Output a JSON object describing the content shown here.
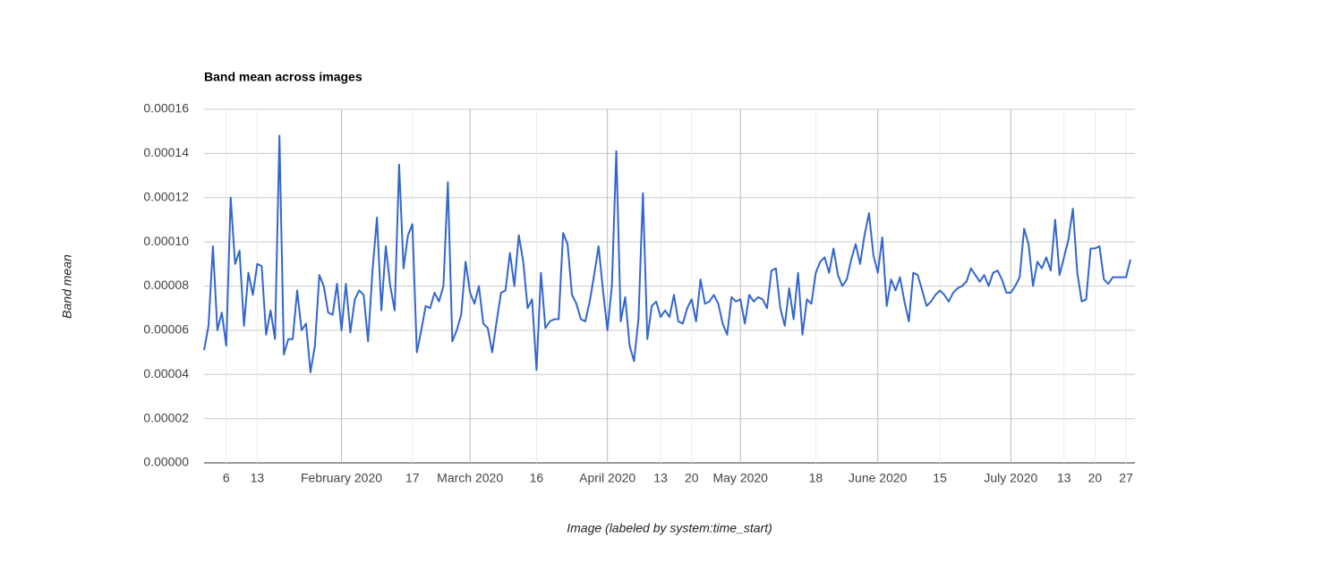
{
  "chart_data": {
    "type": "line",
    "title": "Band mean across images",
    "x_label": "Image (labeled by system:time_start)",
    "y_label": "Band mean",
    "color": "#3366cc",
    "grid": true,
    "xlim": [
      "2020-01-01",
      "2020-07-29"
    ],
    "ylim": [
      0,
      0.00016
    ],
    "yticks": [
      {
        "value": 0,
        "label": "0.00000"
      },
      2e-05,
      4e-05,
      6e-05,
      8e-05,
      {
        "value": 0.0001,
        "label": "0.00010"
      },
      0.00012,
      0.00014,
      0.00016
    ],
    "xticks": [
      {
        "value": "2020-01-06",
        "label": "6"
      },
      {
        "value": "2020-01-13",
        "label": "13"
      },
      {
        "value": "2020-02-01",
        "label": "February 2020"
      },
      {
        "value": "2020-02-17",
        "label": "17"
      },
      {
        "value": "2020-03-01",
        "label": "March 2020"
      },
      {
        "value": "2020-03-16",
        "label": "16"
      },
      {
        "value": "2020-04-01",
        "label": "April 2020"
      },
      {
        "value": "2020-04-13",
        "label": "13"
      },
      {
        "value": "2020-04-20",
        "label": "20"
      },
      {
        "value": "2020-05-01",
        "label": "May 2020"
      },
      {
        "value": "2020-05-18",
        "label": "18"
      },
      {
        "value": "2020-06-01",
        "label": "June 2020"
      },
      {
        "value": "2020-06-15",
        "label": "15"
      },
      {
        "value": "2020-07-01",
        "label": "July 2020"
      },
      {
        "value": "2020-07-13",
        "label": "13"
      },
      {
        "value": "2020-07-20",
        "label": "20"
      },
      {
        "value": "2020-07-27",
        "label": "27"
      }
    ],
    "x": [
      "2020-01-01",
      "2020-01-02",
      "2020-01-03",
      "2020-01-04",
      "2020-01-05",
      "2020-01-06",
      "2020-01-07",
      "2020-01-08",
      "2020-01-09",
      "2020-01-10",
      "2020-01-11",
      "2020-01-12",
      "2020-01-13",
      "2020-01-14",
      "2020-01-15",
      "2020-01-16",
      "2020-01-17",
      "2020-01-18",
      "2020-01-19",
      "2020-01-20",
      "2020-01-21",
      "2020-01-22",
      "2020-01-23",
      "2020-01-24",
      "2020-01-25",
      "2020-01-26",
      "2020-01-27",
      "2020-01-28",
      "2020-01-29",
      "2020-01-30",
      "2020-01-31",
      "2020-02-01",
      "2020-02-02",
      "2020-02-03",
      "2020-02-04",
      "2020-02-05",
      "2020-02-06",
      "2020-02-07",
      "2020-02-08",
      "2020-02-09",
      "2020-02-10",
      "2020-02-11",
      "2020-02-12",
      "2020-02-13",
      "2020-02-14",
      "2020-02-15",
      "2020-02-16",
      "2020-02-17",
      "2020-02-18",
      "2020-02-19",
      "2020-02-20",
      "2020-02-21",
      "2020-02-22",
      "2020-02-23",
      "2020-02-24",
      "2020-02-25",
      "2020-02-26",
      "2020-02-27",
      "2020-02-28",
      "2020-02-29",
      "2020-03-01",
      "2020-03-02",
      "2020-03-03",
      "2020-03-04",
      "2020-03-05",
      "2020-03-06",
      "2020-03-07",
      "2020-03-08",
      "2020-03-09",
      "2020-03-10",
      "2020-03-11",
      "2020-03-12",
      "2020-03-13",
      "2020-03-14",
      "2020-03-15",
      "2020-03-16",
      "2020-03-17",
      "2020-03-18",
      "2020-03-19",
      "2020-03-20",
      "2020-03-21",
      "2020-03-22",
      "2020-03-23",
      "2020-03-24",
      "2020-03-25",
      "2020-03-26",
      "2020-03-27",
      "2020-03-28",
      "2020-03-29",
      "2020-03-30",
      "2020-03-31",
      "2020-04-01",
      "2020-04-02",
      "2020-04-03",
      "2020-04-04",
      "2020-04-05",
      "2020-04-06",
      "2020-04-07",
      "2020-04-08",
      "2020-04-09",
      "2020-04-10",
      "2020-04-11",
      "2020-04-12",
      "2020-04-13",
      "2020-04-14",
      "2020-04-15",
      "2020-04-16",
      "2020-04-17",
      "2020-04-18",
      "2020-04-19",
      "2020-04-20",
      "2020-04-21",
      "2020-04-22",
      "2020-04-23",
      "2020-04-24",
      "2020-04-25",
      "2020-04-26",
      "2020-04-27",
      "2020-04-28",
      "2020-04-29",
      "2020-04-30",
      "2020-05-01",
      "2020-05-02",
      "2020-05-03",
      "2020-05-04",
      "2020-05-05",
      "2020-05-06",
      "2020-05-07",
      "2020-05-08",
      "2020-05-09",
      "2020-05-10",
      "2020-05-11",
      "2020-05-12",
      "2020-05-13",
      "2020-05-14",
      "2020-05-15",
      "2020-05-16",
      "2020-05-17",
      "2020-05-18",
      "2020-05-19",
      "2020-05-20",
      "2020-05-21",
      "2020-05-22",
      "2020-05-23",
      "2020-05-24",
      "2020-05-25",
      "2020-05-26",
      "2020-05-27",
      "2020-05-28",
      "2020-05-29",
      "2020-05-30",
      "2020-05-31",
      "2020-06-01",
      "2020-06-02",
      "2020-06-03",
      "2020-06-04",
      "2020-06-05",
      "2020-06-06",
      "2020-06-07",
      "2020-06-08",
      "2020-06-09",
      "2020-06-10",
      "2020-06-11",
      "2020-06-12",
      "2020-06-13",
      "2020-06-14",
      "2020-06-15",
      "2020-06-16",
      "2020-06-17",
      "2020-06-18",
      "2020-06-19",
      "2020-06-20",
      "2020-06-21",
      "2020-06-22",
      "2020-06-23",
      "2020-06-24",
      "2020-06-25",
      "2020-06-26",
      "2020-06-27",
      "2020-06-28",
      "2020-06-29",
      "2020-06-30",
      "2020-07-01",
      "2020-07-02",
      "2020-07-03",
      "2020-07-04",
      "2020-07-05",
      "2020-07-06",
      "2020-07-07",
      "2020-07-08",
      "2020-07-09",
      "2020-07-10",
      "2020-07-11",
      "2020-07-12",
      "2020-07-13",
      "2020-07-14",
      "2020-07-15",
      "2020-07-16",
      "2020-07-17",
      "2020-07-18",
      "2020-07-19",
      "2020-07-20",
      "2020-07-21",
      "2020-07-22",
      "2020-07-23",
      "2020-07-24",
      "2020-07-25",
      "2020-07-26",
      "2020-07-27",
      "2020-07-28"
    ],
    "values": [
      5.1e-05,
      6.2e-05,
      9.8e-05,
      6e-05,
      6.8e-05,
      5.3e-05,
      0.00012,
      9e-05,
      9.6e-05,
      6.2e-05,
      8.6e-05,
      7.6e-05,
      9e-05,
      8.9e-05,
      5.8e-05,
      6.9e-05,
      5.6e-05,
      0.000148,
      4.9e-05,
      5.6e-05,
      5.6e-05,
      7.8e-05,
      6e-05,
      6.3e-05,
      4.1e-05,
      5.3e-05,
      8.5e-05,
      8e-05,
      6.8e-05,
      6.7e-05,
      8.1e-05,
      6e-05,
      8.1e-05,
      5.9e-05,
      7.4e-05,
      7.8e-05,
      7.6e-05,
      5.5e-05,
      8.7e-05,
      0.000111,
      6.9e-05,
      9.8e-05,
      8e-05,
      6.9e-05,
      0.000135,
      8.8e-05,
      0.000103,
      0.000108,
      5e-05,
      6e-05,
      7.1e-05,
      7e-05,
      7.7e-05,
      7.3e-05,
      8e-05,
      0.000127,
      5.5e-05,
      6e-05,
      6.7e-05,
      9.1e-05,
      7.7e-05,
      7.2e-05,
      8e-05,
      6.3e-05,
      6.1e-05,
      5e-05,
      6.4e-05,
      7.7e-05,
      7.8e-05,
      9.5e-05,
      8e-05,
      0.000103,
      9.1e-05,
      7e-05,
      7.4e-05,
      4.2e-05,
      8.6e-05,
      6.1e-05,
      6.4e-05,
      6.5e-05,
      6.5e-05,
      0.000104,
      9.9e-05,
      7.6e-05,
      7.2e-05,
      6.5e-05,
      6.4e-05,
      7.3e-05,
      8.5e-05,
      9.8e-05,
      7.8e-05,
      6e-05,
      8e-05,
      0.000141,
      6.4e-05,
      7.5e-05,
      5.3e-05,
      4.6e-05,
      6.5e-05,
      0.000122,
      5.6e-05,
      7.1e-05,
      7.3e-05,
      6.6e-05,
      6.9e-05,
      6.6e-05,
      7.6e-05,
      6.4e-05,
      6.3e-05,
      7e-05,
      7.4e-05,
      6.4e-05,
      8.3e-05,
      7.2e-05,
      7.3e-05,
      7.6e-05,
      7.2e-05,
      6.3e-05,
      5.8e-05,
      7.5e-05,
      7.3e-05,
      7.4e-05,
      6.3e-05,
      7.6e-05,
      7.3e-05,
      7.5e-05,
      7.4e-05,
      7e-05,
      8.7e-05,
      8.8e-05,
      7e-05,
      6.2e-05,
      7.9e-05,
      6.5e-05,
      8.6e-05,
      5.8e-05,
      7.4e-05,
      7.2e-05,
      8.6e-05,
      9.1e-05,
      9.3e-05,
      8.6e-05,
      9.7e-05,
      8.5e-05,
      8e-05,
      8.3e-05,
      9.2e-05,
      9.9e-05,
      9e-05,
      0.000103,
      0.000113,
      9.4e-05,
      8.6e-05,
      0.000102,
      7.1e-05,
      8.3e-05,
      7.8e-05,
      8.4e-05,
      7.3e-05,
      6.4e-05,
      8.6e-05,
      8.5e-05,
      7.8e-05,
      7.1e-05,
      7.3e-05,
      7.6e-05,
      7.8e-05,
      7.6e-05,
      7.3e-05,
      7.7e-05,
      7.9e-05,
      8e-05,
      8.2e-05,
      8.8e-05,
      8.5e-05,
      8.2e-05,
      8.5e-05,
      8e-05,
      8.6e-05,
      8.7e-05,
      8.3e-05,
      7.7e-05,
      7.7e-05,
      8e-05,
      8.4e-05,
      0.000106,
      9.9e-05,
      8e-05,
      9.1e-05,
      8.8e-05,
      9.3e-05,
      8.7e-05,
      0.00011,
      8.5e-05,
      9.3e-05,
      0.000101,
      0.000115,
      8.6e-05,
      7.3e-05,
      7.4e-05,
      9.7e-05,
      9.7e-05,
      9.8e-05,
      8.3e-05,
      8.1e-05,
      8.4e-05,
      8.4e-05,
      8.4e-05,
      8.4e-05,
      9.2e-05
    ]
  }
}
